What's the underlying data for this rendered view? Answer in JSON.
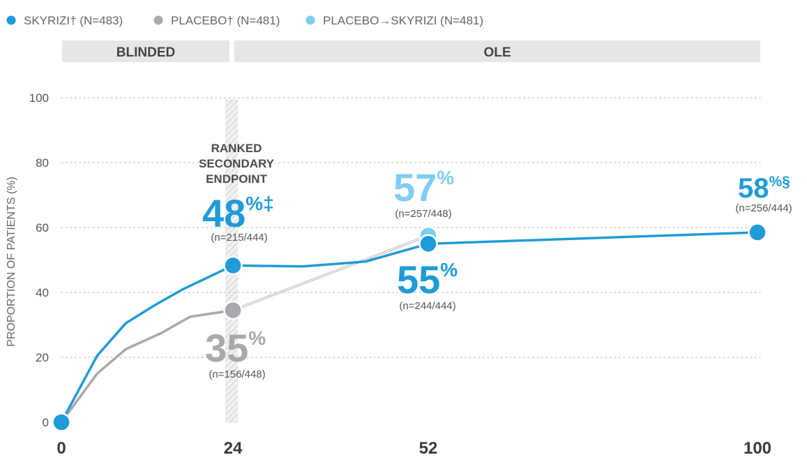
{
  "chart_data": {
    "type": "line",
    "ylabel": "PROPORTION OF PATIENTS (%)",
    "ylim": [
      0,
      100
    ],
    "y_ticks": [
      "0",
      "20",
      "40",
      "60",
      "80",
      "100"
    ],
    "x_ticks": [
      "0",
      "24",
      "52",
      "100"
    ],
    "phases": [
      {
        "label": "BLINDED"
      },
      {
        "label": "OLE"
      }
    ],
    "legend": [
      {
        "label": "SKYRIZI† (N=483)",
        "color": "#1f9bd7"
      },
      {
        "label": "PLACEBO† (N=481)",
        "color": "#a7a9ac"
      },
      {
        "label": "PLACEBO→SKYRIZI (N=481)",
        "color": "#7fcdf0"
      }
    ],
    "endpoint_label": [
      "RANKED",
      "SECONDARY",
      "ENDPOINT"
    ],
    "series": [
      {
        "name": "SKYRIZI",
        "color": "#1f9bd7",
        "points": [
          [
            0,
            0
          ],
          [
            5,
            20.5
          ],
          [
            9,
            30.5
          ],
          [
            13,
            36
          ],
          [
            17,
            41
          ],
          [
            24,
            48.3
          ],
          [
            34,
            48
          ],
          [
            43,
            49.5
          ],
          [
            52,
            55
          ],
          [
            100,
            58.5
          ]
        ],
        "markers": [
          [
            0,
            0
          ],
          [
            24,
            48.3
          ],
          [
            52,
            55
          ],
          [
            100,
            58.5
          ]
        ]
      },
      {
        "name": "PLACEBO",
        "color": "#a7a9ac",
        "points": [
          [
            0,
            0
          ],
          [
            5,
            15
          ],
          [
            9,
            22.5
          ],
          [
            14,
            27.5
          ],
          [
            18,
            32.5
          ],
          [
            24,
            34.5
          ]
        ],
        "markers": [
          [
            24,
            34.5
          ]
        ]
      },
      {
        "name": "PLACEBO→SKYRIZI",
        "color": "#7fcdf0",
        "points": [
          [
            24,
            34.5
          ],
          [
            52,
            57.5
          ]
        ],
        "markers": [
          [
            52,
            57.5
          ]
        ]
      }
    ],
    "annotations": [
      {
        "value": "48",
        "suffix": "%‡",
        "n": "(n=215/444)",
        "color": "#1f9bd7"
      },
      {
        "value": "35",
        "suffix": "%",
        "n": "(n=156/448)",
        "color": "#a7a9ac"
      },
      {
        "value": "57",
        "suffix": "%",
        "n": "(n=257/448)",
        "color": "#7fcdf0"
      },
      {
        "value": "55",
        "suffix": "%",
        "n": "(n=244/444)",
        "color": "#1f9bd7"
      },
      {
        "value": "58",
        "suffix": "%§",
        "n": "(n=256/444)",
        "color": "#1f9bd7"
      }
    ]
  }
}
